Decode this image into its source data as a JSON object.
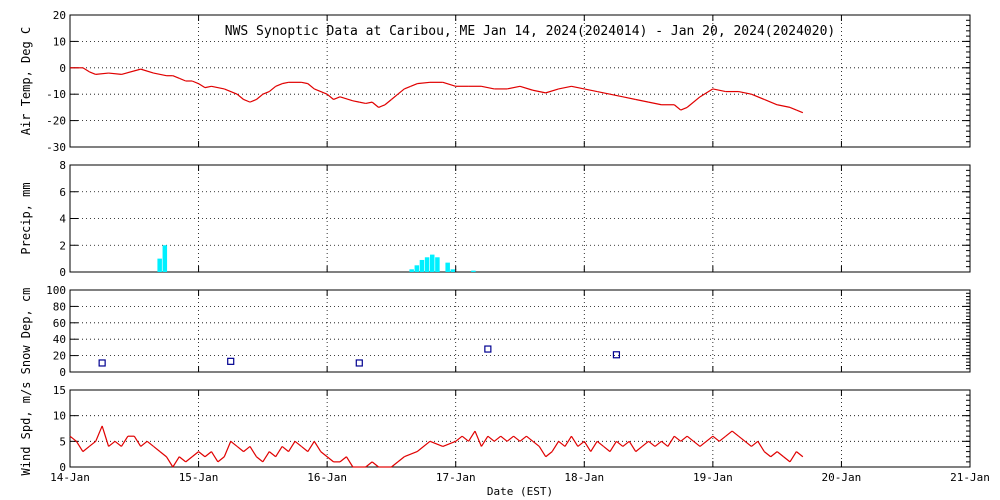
{
  "chart_data": {
    "title": "NWS Synoptic Data at Caribou, ME   Jan 14, 2024(2024014) - Jan 20, 2024(2024020)",
    "xlabel": "Date (EST)",
    "x_range_days": [
      0,
      7
    ],
    "x_ticks": [
      "14-Jan",
      "15-Jan",
      "16-Jan",
      "17-Jan",
      "18-Jan",
      "19-Jan",
      "20-Jan",
      "21-Jan"
    ],
    "grid": true,
    "panels": [
      {
        "id": "temp",
        "type": "line",
        "ylabel": "Air Temp, Deg C",
        "ylim": [
          -30,
          20
        ],
        "yticks": [
          20,
          10,
          0,
          -10,
          -20,
          -30
        ],
        "color": "#e00000",
        "points": [
          [
            0.0,
            0
          ],
          [
            0.1,
            0
          ],
          [
            0.15,
            -1.5
          ],
          [
            0.2,
            -2.5
          ],
          [
            0.3,
            -2.0
          ],
          [
            0.4,
            -2.5
          ],
          [
            0.55,
            -0.5
          ],
          [
            0.65,
            -2
          ],
          [
            0.75,
            -3
          ],
          [
            0.8,
            -3
          ],
          [
            0.85,
            -4
          ],
          [
            0.9,
            -5
          ],
          [
            0.95,
            -5
          ],
          [
            1.0,
            -6
          ],
          [
            1.05,
            -7.5
          ],
          [
            1.1,
            -7
          ],
          [
            1.2,
            -8
          ],
          [
            1.3,
            -10
          ],
          [
            1.35,
            -12
          ],
          [
            1.4,
            -13
          ],
          [
            1.45,
            -12
          ],
          [
            1.5,
            -10
          ],
          [
            1.55,
            -9
          ],
          [
            1.6,
            -7
          ],
          [
            1.65,
            -6
          ],
          [
            1.7,
            -5.5
          ],
          [
            1.8,
            -5.5
          ],
          [
            1.85,
            -6
          ],
          [
            1.9,
            -8
          ],
          [
            2.0,
            -10
          ],
          [
            2.05,
            -12
          ],
          [
            2.1,
            -11
          ],
          [
            2.2,
            -12.5
          ],
          [
            2.25,
            -13
          ],
          [
            2.3,
            -13.5
          ],
          [
            2.35,
            -13
          ],
          [
            2.4,
            -15
          ],
          [
            2.45,
            -14
          ],
          [
            2.5,
            -12
          ],
          [
            2.55,
            -10
          ],
          [
            2.6,
            -8
          ],
          [
            2.65,
            -7
          ],
          [
            2.7,
            -6
          ],
          [
            2.8,
            -5.5
          ],
          [
            2.9,
            -5.5
          ],
          [
            3.0,
            -7
          ],
          [
            3.1,
            -7
          ],
          [
            3.2,
            -7
          ],
          [
            3.3,
            -8
          ],
          [
            3.4,
            -8
          ],
          [
            3.5,
            -7
          ],
          [
            3.6,
            -8.5
          ],
          [
            3.7,
            -9.5
          ],
          [
            3.8,
            -8
          ],
          [
            3.9,
            -7
          ],
          [
            4.0,
            -8
          ],
          [
            4.1,
            -9
          ],
          [
            4.2,
            -10
          ],
          [
            4.3,
            -11
          ],
          [
            4.4,
            -12
          ],
          [
            4.5,
            -13
          ],
          [
            4.6,
            -14
          ],
          [
            4.7,
            -14
          ],
          [
            4.75,
            -16
          ],
          [
            4.8,
            -15
          ],
          [
            4.9,
            -11
          ],
          [
            5.0,
            -8
          ],
          [
            5.1,
            -9
          ],
          [
            5.2,
            -9
          ],
          [
            5.3,
            -10
          ],
          [
            5.4,
            -12
          ],
          [
            5.5,
            -14
          ],
          [
            5.6,
            -15
          ],
          [
            5.65,
            -16
          ],
          [
            5.7,
            -17
          ]
        ]
      },
      {
        "id": "precip",
        "type": "bar",
        "ylabel": "Precip, mm",
        "ylim": [
          0,
          8
        ],
        "yticks": [
          8,
          6,
          4,
          2,
          0
        ],
        "color": "#00f0ff",
        "bar_width_days": 0.035,
        "bars": [
          [
            0.68,
            1.0
          ],
          [
            0.72,
            2.0
          ],
          [
            2.64,
            0.2
          ],
          [
            2.68,
            0.5
          ],
          [
            2.72,
            0.9
          ],
          [
            2.76,
            1.1
          ],
          [
            2.8,
            1.3
          ],
          [
            2.84,
            1.1
          ],
          [
            2.92,
            0.7
          ],
          [
            2.96,
            0.2
          ],
          [
            3.12,
            0.1
          ]
        ]
      },
      {
        "id": "snow",
        "type": "scatter",
        "ylabel": "Snow Dep, cm",
        "ylim": [
          0,
          100
        ],
        "yticks": [
          100,
          80,
          60,
          40,
          20,
          0
        ],
        "color": "#000090",
        "points": [
          [
            0.25,
            11
          ],
          [
            1.25,
            13
          ],
          [
            2.25,
            11
          ],
          [
            3.25,
            28
          ],
          [
            4.25,
            21
          ]
        ]
      },
      {
        "id": "wind",
        "type": "line",
        "ylabel": "Wind Spd, m/s",
        "ylim": [
          0,
          15
        ],
        "yticks": [
          15,
          10,
          5,
          0
        ],
        "color": "#e00000",
        "points": [
          [
            0.0,
            6
          ],
          [
            0.05,
            5
          ],
          [
            0.1,
            3
          ],
          [
            0.15,
            4
          ],
          [
            0.2,
            5
          ],
          [
            0.25,
            8
          ],
          [
            0.3,
            4
          ],
          [
            0.35,
            5
          ],
          [
            0.4,
            4
          ],
          [
            0.45,
            6
          ],
          [
            0.5,
            6
          ],
          [
            0.55,
            4
          ],
          [
            0.6,
            5
          ],
          [
            0.65,
            4
          ],
          [
            0.7,
            3
          ],
          [
            0.75,
            2
          ],
          [
            0.8,
            0
          ],
          [
            0.85,
            2
          ],
          [
            0.9,
            1
          ],
          [
            0.95,
            2
          ],
          [
            1.0,
            3
          ],
          [
            1.05,
            2
          ],
          [
            1.1,
            3
          ],
          [
            1.15,
            1
          ],
          [
            1.2,
            2
          ],
          [
            1.25,
            5
          ],
          [
            1.3,
            4
          ],
          [
            1.35,
            3
          ],
          [
            1.4,
            4
          ],
          [
            1.45,
            2
          ],
          [
            1.5,
            1
          ],
          [
            1.55,
            3
          ],
          [
            1.6,
            2
          ],
          [
            1.65,
            4
          ],
          [
            1.7,
            3
          ],
          [
            1.75,
            5
          ],
          [
            1.8,
            4
          ],
          [
            1.85,
            3
          ],
          [
            1.9,
            5
          ],
          [
            1.95,
            3
          ],
          [
            2.0,
            2
          ],
          [
            2.05,
            1
          ],
          [
            2.1,
            1
          ],
          [
            2.15,
            2
          ],
          [
            2.2,
            0
          ],
          [
            2.3,
            0
          ],
          [
            2.35,
            1
          ],
          [
            2.4,
            0
          ],
          [
            2.5,
            0
          ],
          [
            2.55,
            1
          ],
          [
            2.6,
            2
          ],
          [
            2.7,
            3
          ],
          [
            2.8,
            5
          ],
          [
            2.9,
            4
          ],
          [
            3.0,
            5
          ],
          [
            3.05,
            6
          ],
          [
            3.1,
            5
          ],
          [
            3.15,
            7
          ],
          [
            3.2,
            4
          ],
          [
            3.25,
            6
          ],
          [
            3.3,
            5
          ],
          [
            3.35,
            6
          ],
          [
            3.4,
            5
          ],
          [
            3.45,
            6
          ],
          [
            3.5,
            5
          ],
          [
            3.55,
            6
          ],
          [
            3.6,
            5
          ],
          [
            3.65,
            4
          ],
          [
            3.7,
            2
          ],
          [
            3.75,
            3
          ],
          [
            3.8,
            5
          ],
          [
            3.85,
            4
          ],
          [
            3.9,
            6
          ],
          [
            3.95,
            4
          ],
          [
            4.0,
            5
          ],
          [
            4.05,
            3
          ],
          [
            4.1,
            5
          ],
          [
            4.15,
            4
          ],
          [
            4.2,
            3
          ],
          [
            4.25,
            5
          ],
          [
            4.3,
            4
          ],
          [
            4.35,
            5
          ],
          [
            4.4,
            3
          ],
          [
            4.45,
            4
          ],
          [
            4.5,
            5
          ],
          [
            4.55,
            4
          ],
          [
            4.6,
            5
          ],
          [
            4.65,
            4
          ],
          [
            4.7,
            6
          ],
          [
            4.75,
            5
          ],
          [
            4.8,
            6
          ],
          [
            4.85,
            5
          ],
          [
            4.9,
            4
          ],
          [
            4.95,
            5
          ],
          [
            5.0,
            6
          ],
          [
            5.05,
            5
          ],
          [
            5.1,
            6
          ],
          [
            5.15,
            7
          ],
          [
            5.2,
            6
          ],
          [
            5.25,
            5
          ],
          [
            5.3,
            4
          ],
          [
            5.35,
            5
          ],
          [
            5.4,
            3
          ],
          [
            5.45,
            2
          ],
          [
            5.5,
            3
          ],
          [
            5.55,
            2
          ],
          [
            5.6,
            1
          ],
          [
            5.65,
            3
          ],
          [
            5.7,
            2
          ]
        ]
      }
    ]
  }
}
